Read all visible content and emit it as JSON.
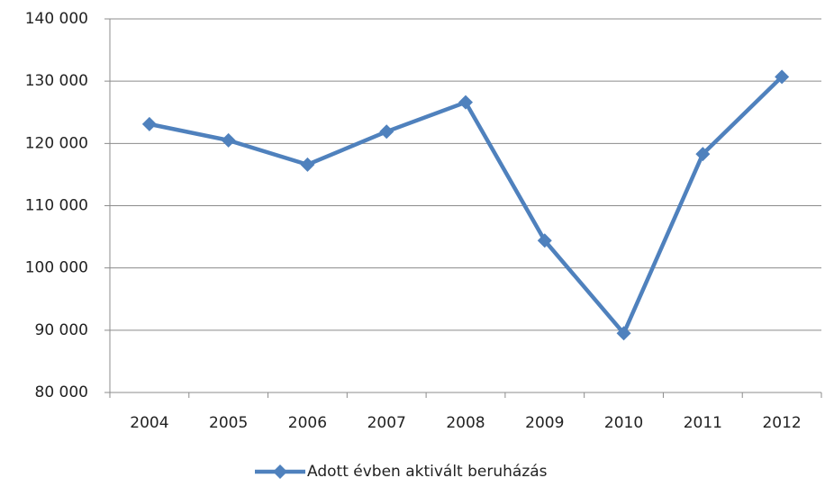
{
  "chart_data": {
    "type": "line",
    "categories": [
      "2004",
      "2005",
      "2006",
      "2007",
      "2008",
      "2009",
      "2010",
      "2011",
      "2012"
    ],
    "series": [
      {
        "name": "Adott évben aktivált beruházás",
        "color": "#4f81bd",
        "values": [
          123100,
          120500,
          116600,
          121900,
          126600,
          104400,
          89500,
          118300,
          130700
        ]
      }
    ],
    "ylim": [
      80000,
      140000
    ],
    "yticks": [
      {
        "value": 80000,
        "label": "80 000"
      },
      {
        "value": 90000,
        "label": "90 000"
      },
      {
        "value": 100000,
        "label": "100 000"
      },
      {
        "value": 110000,
        "label": "110 000"
      },
      {
        "value": 120000,
        "label": "120 000"
      },
      {
        "value": 130000,
        "label": "130 000"
      },
      {
        "value": 140000,
        "label": "140 000"
      }
    ],
    "grid": true,
    "legend": "bottom"
  }
}
